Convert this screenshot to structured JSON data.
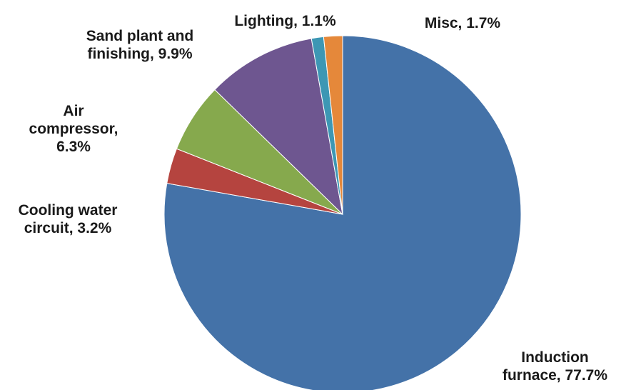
{
  "chart_data": {
    "type": "pie",
    "start_angle_deg": 0,
    "direction": "clockwise",
    "slices": [
      {
        "lines": [
          "Induction",
          "furnace, 77.7%"
        ],
        "value": 77.7,
        "color": "#4472A8"
      },
      {
        "lines": [
          "Cooling water",
          "circuit, 3.2%"
        ],
        "value": 3.2,
        "color": "#B5443F"
      },
      {
        "lines": [
          "Air",
          "compressor,",
          "6.3%"
        ],
        "value": 6.3,
        "color": "#86A94D"
      },
      {
        "lines": [
          "Sand plant and",
          "finishing, 9.9%"
        ],
        "value": 9.9,
        "color": "#6E5690"
      },
      {
        "lines": [
          "Lighting, 1.1%"
        ],
        "value": 1.1,
        "color": "#3D97B4"
      },
      {
        "lines": [
          "Misc, 1.7%"
        ],
        "value": 1.7,
        "color": "#E5883A"
      }
    ]
  }
}
